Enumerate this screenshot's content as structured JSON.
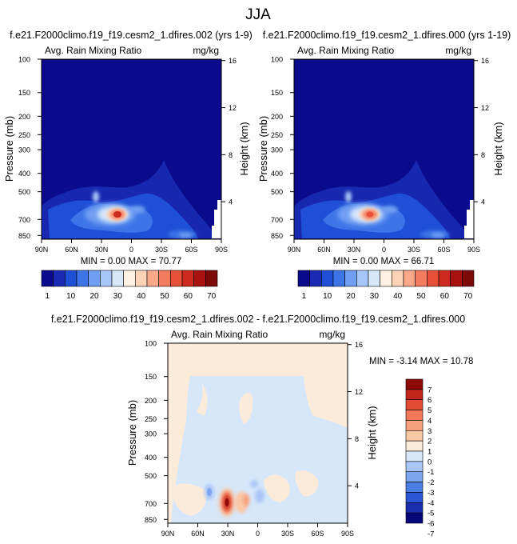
{
  "figure_title": "JJA",
  "colors": {
    "main_palette": [
      "#0a0a8c",
      "#1a2ab4",
      "#1f4fd6",
      "#3d74e8",
      "#6f9ef2",
      "#a6c6f8",
      "#d8e8fb",
      "#fdf2e3",
      "#fcd3b6",
      "#f9a98a",
      "#f47c5e",
      "#e8503a",
      "#cc2a1d",
      "#a8120f",
      "#7c0a08"
    ],
    "diff_palette": [
      "#08087a",
      "#1a2fae",
      "#2a55d4",
      "#4a7ee4",
      "#7ca6ef",
      "#aac6f6",
      "#d6e7fa",
      "#fdebd9",
      "#fbc8a6",
      "#f7a17e",
      "#f17858",
      "#e24c34",
      "#c2251a",
      "#8c0a08"
    ]
  },
  "chart_data": [
    {
      "type": "heatmap",
      "title": "f.e21.F2000climo.f19_f19.cesm2_1.dfires.002 (yrs 1-9)",
      "left_label": "Avg. Rain Mixing Ratio",
      "units": "mg/kg",
      "ylabel": "Pressure (mb)",
      "ylabel_right": "Height (km)",
      "xticks": [
        "90N",
        "60N",
        "30N",
        "0",
        "30S",
        "60S",
        "90S"
      ],
      "yticks": [
        "100",
        "150",
        "200",
        "250",
        "300",
        "400",
        "500",
        "700",
        "850"
      ],
      "yticks_right": [
        "16",
        "12",
        "8",
        "4"
      ],
      "min_max_text": "MIN =  0.00  MAX = 70.77",
      "peak": {
        "lat": 10,
        "pressure": 700,
        "value": 70.77
      },
      "colorbar_levels": [
        1,
        10,
        20,
        30,
        40,
        50,
        60,
        70
      ]
    },
    {
      "type": "heatmap",
      "title": "f.e21.F2000climo.f19_f19.cesm2_1.dfires.000 (yrs 1-19)",
      "left_label": "Avg. Rain Mixing Ratio",
      "units": "mg/kg",
      "ylabel": "Pressure (mb)",
      "ylabel_right": "Height (km)",
      "xticks": [
        "90N",
        "60N",
        "30N",
        "0",
        "30S",
        "60S",
        "90S"
      ],
      "yticks": [
        "100",
        "150",
        "200",
        "250",
        "300",
        "400",
        "500",
        "700",
        "850"
      ],
      "yticks_right": [
        "16",
        "12",
        "8",
        "4"
      ],
      "min_max_text": "MIN =  0.00  MAX = 66.71",
      "peak": {
        "lat": 10,
        "pressure": 700,
        "value": 66.71
      },
      "colorbar_levels": [
        1,
        10,
        20,
        30,
        40,
        50,
        60,
        70
      ]
    },
    {
      "type": "heatmap",
      "title": "f.e21.F2000climo.f19_f19.cesm2_1.dfires.002 - f.e21.F2000climo.f19_f19.cesm2_1.dfires.000",
      "left_label": "Avg. Rain Mixing Ratio",
      "units": "mg/kg",
      "ylabel": "Pressure (mb)",
      "ylabel_right": "Height (km)",
      "xticks": [
        "90N",
        "60N",
        "30N",
        "0",
        "30S",
        "60S",
        "90S"
      ],
      "yticks": [
        "100",
        "150",
        "200",
        "250",
        "300",
        "400",
        "500",
        "700",
        "850"
      ],
      "yticks_right": [
        "16",
        "12",
        "8",
        "4"
      ],
      "min_max_text": "MIN = -3.14  MAX = 10.78",
      "peak": {
        "lat": 30,
        "pressure": 700,
        "value": 10.78
      },
      "colorbar_levels": [
        7,
        6,
        5,
        4,
        3,
        2,
        1,
        0,
        -1,
        -2,
        -3,
        -4,
        -5,
        -6,
        -7
      ]
    }
  ]
}
